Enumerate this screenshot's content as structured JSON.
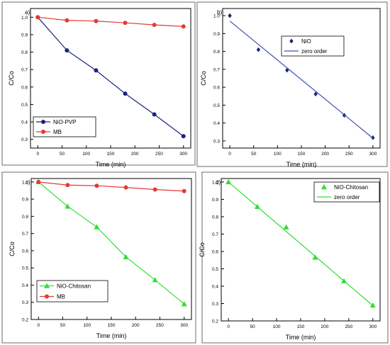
{
  "chart_data": [
    {
      "type": "line",
      "panel_label": "a)",
      "xlabel": "Time (min)",
      "ylabel": "C/Co",
      "xlim": [
        -15,
        315
      ],
      "ylim": [
        0.25,
        1.05
      ],
      "x_ticks": [
        0,
        50,
        100,
        150,
        200,
        250,
        300
      ],
      "y_ticks": [
        0.3,
        0.4,
        0.5,
        0.6,
        0.7,
        0.8,
        0.9,
        1.0
      ],
      "x_tick_labels": [
        "0",
        "50",
        "100",
        "150",
        "200",
        "250",
        "300"
      ],
      "y_tick_labels": [
        "0.3",
        "0.4",
        "0.5",
        "0.6",
        "0.7",
        "0.8",
        "0.9",
        "1.0"
      ],
      "legend_position": "bottom-left",
      "series": [
        {
          "name": "NiO-PVP",
          "color": "#1a237e",
          "marker": "circle",
          "line": "connect",
          "x": [
            0,
            60,
            120,
            180,
            240,
            300
          ],
          "y": [
            1.0,
            0.81,
            0.695,
            0.562,
            0.443,
            0.318
          ]
        },
        {
          "name": "MB",
          "color": "#e53935",
          "marker": "circle",
          "line": "connect",
          "x": [
            0,
            60,
            120,
            180,
            240,
            300
          ],
          "y": [
            1.0,
            0.982,
            0.978,
            0.968,
            0.956,
            0.947
          ]
        }
      ]
    },
    {
      "type": "line",
      "panel_label": "b)",
      "xlabel": "Time (min)",
      "ylabel": "C/Co",
      "xlim": [
        -15,
        315
      ],
      "ylim": [
        0.26,
        1.04
      ],
      "x_ticks": [
        0,
        50,
        100,
        150,
        200,
        250,
        300
      ],
      "y_ticks": [
        0.3,
        0.4,
        0.5,
        0.6,
        0.7,
        0.8,
        0.9,
        1.0
      ],
      "x_tick_labels": [
        "0",
        "50",
        "100",
        "150",
        "200",
        "250",
        "300"
      ],
      "y_tick_labels": [
        "0.3",
        "0.4",
        "0.5",
        "0.6",
        "0.7",
        "0.8",
        "0.9",
        "1.0"
      ],
      "legend_position": "top-right",
      "series": [
        {
          "name": "NiO",
          "color": "#1a237e",
          "marker": "diamond",
          "line": "none",
          "x": [
            0,
            60,
            120,
            180,
            240,
            300
          ],
          "y": [
            1.0,
            0.81,
            0.695,
            0.562,
            0.443,
            0.318
          ]
        },
        {
          "name": "zero order",
          "color": "#3f51b5",
          "marker": "none",
          "line": "fit",
          "x": [
            0,
            300
          ],
          "y": [
            0.97,
            0.315
          ]
        }
      ]
    },
    {
      "type": "line",
      "panel_label": "c)",
      "xlabel": "Time (min)",
      "ylabel": "C/Co",
      "xlim": [
        -15,
        315
      ],
      "ylim": [
        0.2,
        1.02
      ],
      "x_ticks": [
        0,
        50,
        100,
        150,
        200,
        250,
        300
      ],
      "y_ticks": [
        0.2,
        0.3,
        0.4,
        0.5,
        0.6,
        0.7,
        0.8,
        0.9,
        1.0
      ],
      "x_tick_labels": [
        "0",
        "50",
        "100",
        "150",
        "200",
        "250",
        "300"
      ],
      "y_tick_labels": [
        "0.2",
        "0.3",
        "0.4",
        "0.5",
        "0.6",
        "0.7",
        "0.8",
        "0.9",
        "1.0"
      ],
      "legend_position": "bottom-left",
      "series": [
        {
          "name": "NiO-Chitosan",
          "color": "#33dd33",
          "marker": "triangle",
          "line": "connect",
          "x": [
            0,
            60,
            120,
            180,
            240,
            300
          ],
          "y": [
            1.0,
            0.858,
            0.738,
            0.564,
            0.43,
            0.29
          ]
        },
        {
          "name": "MB",
          "color": "#e53935",
          "marker": "circle",
          "line": "connect",
          "x": [
            0,
            60,
            120,
            180,
            240,
            300
          ],
          "y": [
            1.0,
            0.982,
            0.978,
            0.968,
            0.956,
            0.947
          ]
        }
      ]
    },
    {
      "type": "line",
      "panel_label": "d)",
      "xlabel": "Time (min)",
      "ylabel": "C/Co",
      "xlim": [
        -15,
        315
      ],
      "ylim": [
        0.2,
        1.02
      ],
      "x_ticks": [
        0,
        50,
        100,
        150,
        200,
        250,
        300
      ],
      "y_ticks": [
        0.2,
        0.3,
        0.4,
        0.5,
        0.6,
        0.7,
        0.8,
        0.9,
        1.0
      ],
      "x_tick_labels": [
        "0",
        "50",
        "100",
        "150",
        "200",
        "250",
        "300"
      ],
      "y_tick_labels": [
        "0.2",
        "0.3",
        "0.4",
        "0.5",
        "0.6",
        "0.7",
        "0.8",
        "0.9",
        "1.0"
      ],
      "legend_position": "top-right",
      "series": [
        {
          "name": "NiO-Chitosan",
          "color": "#33dd33",
          "marker": "triangle",
          "line": "none",
          "x": [
            0,
            60,
            120,
            180,
            240,
            300
          ],
          "y": [
            1.0,
            0.858,
            0.74,
            0.566,
            0.43,
            0.29
          ]
        },
        {
          "name": "zero order",
          "color": "#33dd33",
          "marker": "none",
          "line": "fit",
          "x": [
            0,
            300
          ],
          "y": [
            1.0,
            0.288
          ]
        }
      ]
    }
  ]
}
